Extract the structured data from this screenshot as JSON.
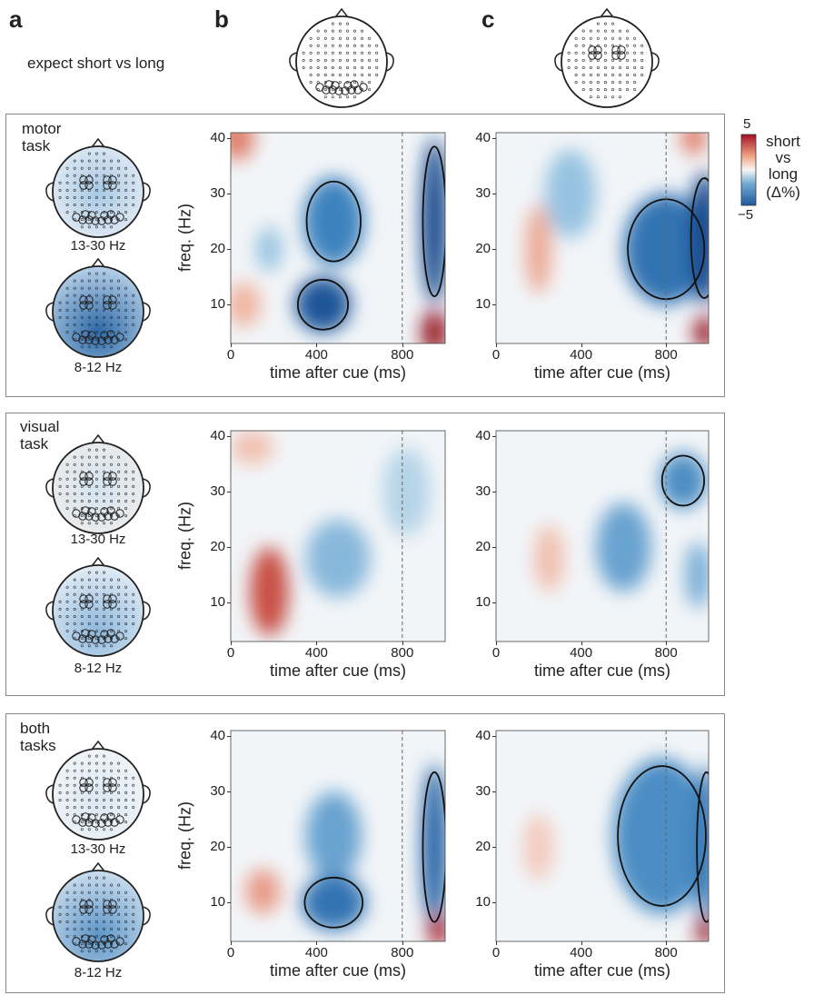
{
  "panels": {
    "a": "a",
    "b": "b",
    "c": "c"
  },
  "header_subtitle": "expect short vs long",
  "rows": [
    {
      "label_lines": [
        "motor",
        "task"
      ],
      "bands": [
        "13-30 Hz",
        "8-12 Hz"
      ],
      "panel_b": {
        "contours": true,
        "blobs": [
          {
            "x": 480,
            "y": 25,
            "rx": 140,
            "ry": 8,
            "v": -0.6
          },
          {
            "x": 430,
            "y": 10,
            "rx": 130,
            "ry": 5,
            "v": -0.9
          },
          {
            "x": 950,
            "y": 5,
            "rx": 60,
            "ry": 4,
            "v": 1.0
          },
          {
            "x": 30,
            "y": 40,
            "rx": 80,
            "ry": 4,
            "v": 0.5
          },
          {
            "x": 950,
            "y": 25,
            "rx": 60,
            "ry": 15,
            "v": -1.0
          },
          {
            "x": 60,
            "y": 10,
            "rx": 80,
            "ry": 4,
            "v": 0.3
          },
          {
            "x": 180,
            "y": 20,
            "rx": 60,
            "ry": 4,
            "v": -0.3
          }
        ]
      },
      "panel_c": {
        "contours": true,
        "blobs": [
          {
            "x": 800,
            "y": 20,
            "rx": 200,
            "ry": 10,
            "v": -0.7
          },
          {
            "x": 980,
            "y": 22,
            "rx": 70,
            "ry": 12,
            "v": -1.0
          },
          {
            "x": 980,
            "y": 5,
            "rx": 50,
            "ry": 3,
            "v": 1.0
          },
          {
            "x": 930,
            "y": 40,
            "rx": 60,
            "ry": 3,
            "v": 0.5
          },
          {
            "x": 200,
            "y": 20,
            "rx": 60,
            "ry": 8,
            "v": 0.35
          },
          {
            "x": 350,
            "y": 30,
            "rx": 120,
            "ry": 8,
            "v": -0.3
          }
        ]
      }
    },
    {
      "label_lines": [
        "visual",
        "task"
      ],
      "bands": [
        "13-30 Hz",
        "8-12 Hz"
      ],
      "panel_b": {
        "contours": false,
        "blobs": [
          {
            "x": 180,
            "y": 12,
            "rx": 90,
            "ry": 8,
            "v": 0.7
          },
          {
            "x": 500,
            "y": 18,
            "rx": 150,
            "ry": 7,
            "v": -0.35
          },
          {
            "x": 820,
            "y": 30,
            "rx": 110,
            "ry": 8,
            "v": -0.2
          },
          {
            "x": 100,
            "y": 38,
            "rx": 100,
            "ry": 3,
            "v": 0.25
          }
        ]
      },
      "panel_c": {
        "contours": true,
        "blobs": [
          {
            "x": 880,
            "y": 32,
            "rx": 110,
            "ry": 5,
            "v": -0.55
          },
          {
            "x": 600,
            "y": 20,
            "rx": 130,
            "ry": 8,
            "v": -0.45
          },
          {
            "x": 950,
            "y": 15,
            "rx": 60,
            "ry": 6,
            "v": -0.4
          },
          {
            "x": 250,
            "y": 18,
            "rx": 70,
            "ry": 6,
            "v": 0.25
          }
        ]
      }
    },
    {
      "label_lines": [
        "both",
        "tasks"
      ],
      "bands": [
        "13-30 Hz",
        "8-12 Hz"
      ],
      "panel_b": {
        "contours": true,
        "blobs": [
          {
            "x": 480,
            "y": 22,
            "rx": 130,
            "ry": 8,
            "v": -0.45
          },
          {
            "x": 480,
            "y": 10,
            "rx": 150,
            "ry": 5,
            "v": -0.7
          },
          {
            "x": 950,
            "y": 20,
            "rx": 60,
            "ry": 15,
            "v": -0.8
          },
          {
            "x": 970,
            "y": 5,
            "rx": 50,
            "ry": 3,
            "v": 0.9
          },
          {
            "x": 150,
            "y": 12,
            "rx": 80,
            "ry": 4,
            "v": 0.4
          }
        ]
      },
      "panel_c": {
        "contours": true,
        "blobs": [
          {
            "x": 780,
            "y": 22,
            "rx": 230,
            "ry": 14,
            "v": -0.55
          },
          {
            "x": 990,
            "y": 20,
            "rx": 50,
            "ry": 15,
            "v": -0.7
          },
          {
            "x": 985,
            "y": 5,
            "rx": 40,
            "ry": 3,
            "v": 1.0
          },
          {
            "x": 200,
            "y": 20,
            "rx": 70,
            "ry": 6,
            "v": 0.2
          }
        ]
      }
    }
  ],
  "axes": {
    "xlabel": "time after cue (ms)",
    "ylabel": "freq. (Hz)",
    "xticks": [
      0,
      400,
      800
    ],
    "yticks": [
      10,
      20,
      30,
      40
    ],
    "xlim": [
      0,
      1000
    ],
    "ylim": [
      3,
      41
    ],
    "cue_line_ms": 800
  },
  "colorbar": {
    "max_label": "5",
    "min_label": "−5",
    "title_lines": [
      "short",
      "vs",
      "long",
      "(Δ%)"
    ],
    "colors": [
      "#2166ac",
      "#f7f7f7",
      "#b2182b"
    ]
  },
  "chart_data": {
    "type": "heatmap",
    "xlabel": "time after cue (ms)",
    "ylabel": "freq. (Hz)",
    "xlim": [
      0,
      1000
    ],
    "ylim": [
      3,
      41
    ],
    "colorbar_range": [
      -5,
      5
    ]
  }
}
